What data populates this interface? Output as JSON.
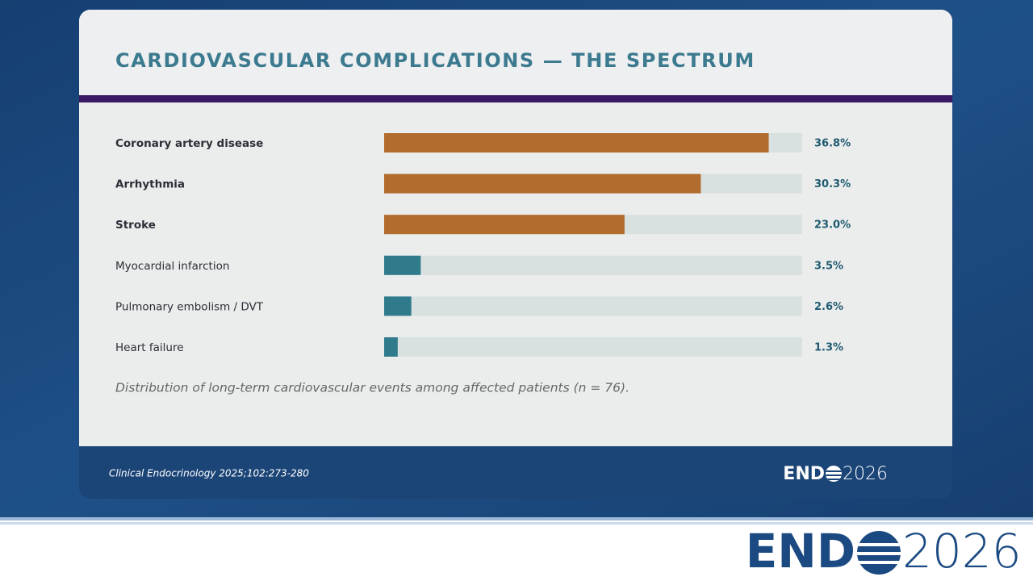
{
  "chart_data": {
    "type": "hbar",
    "title": "CARDIOVASCULAR COMPLICATIONS — THE SPECTRUM",
    "categories": [
      "Coronary artery disease",
      "Arrhythmia",
      "Stroke",
      "Myocardial infarction",
      "Pulmonary embolism / DVT",
      "Heart failure"
    ],
    "values": [
      36.8,
      30.3,
      23.0,
      3.5,
      2.6,
      1.3
    ],
    "value_labels": [
      "36.8%",
      "30.3%",
      "23.0%",
      "3.5%",
      "2.6%",
      "1.3%"
    ],
    "colors": [
      "#b26c2e",
      "#b26c2e",
      "#b26c2e",
      "#2f7b8c",
      "#2f7b8c",
      "#2f7b8c"
    ],
    "emphasized": [
      true,
      true,
      true,
      false,
      false,
      false
    ],
    "xlim": [
      0,
      40
    ],
    "caption": "Distribution of long-term cardiovascular events among affected patients (n = 76)."
  },
  "footer": {
    "citation": "Clinical Endocrinology 2025;102:273-280",
    "brand_prefix": "END",
    "brand_year": "2026"
  }
}
